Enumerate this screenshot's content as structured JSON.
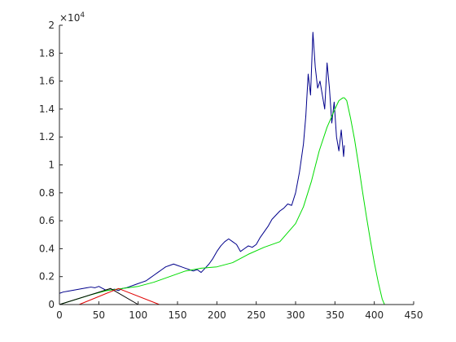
{
  "chart_data": {
    "type": "line",
    "title": "",
    "xlabel": "",
    "ylabel": "",
    "xlim": [
      0,
      450
    ],
    "ylim": [
      0,
      20000
    ],
    "y_multiplier_label": "×10",
    "y_multiplier_exponent": "4",
    "x_ticks": [
      0,
      50,
      100,
      150,
      200,
      250,
      300,
      350,
      400,
      450
    ],
    "x_tick_labels": [
      "0",
      "50",
      "100",
      "150",
      "200",
      "250",
      "300",
      "350",
      "400",
      "450"
    ],
    "y_ticks": [
      0,
      2000,
      4000,
      6000,
      8000,
      10000,
      12000,
      14000,
      16000,
      18000,
      20000
    ],
    "y_tick_labels": [
      "0",
      "0.2",
      "0.4",
      "0.6",
      "0.8",
      "1",
      "1.2",
      "1.4",
      "1.6",
      "1.8",
      "2"
    ],
    "grid": false,
    "legend": "none",
    "series": [
      {
        "color": "#00008b",
        "x": [
          0,
          5,
          10,
          15,
          20,
          25,
          30,
          35,
          40,
          45,
          50,
          55,
          60,
          65,
          70,
          75,
          80,
          85,
          90,
          95,
          100,
          105,
          110,
          115,
          120,
          125,
          130,
          135,
          140,
          145,
          150,
          155,
          160,
          165,
          170,
          175,
          180,
          185,
          190,
          195,
          200,
          205,
          210,
          215,
          220,
          225,
          230,
          235,
          240,
          245,
          250,
          255,
          260,
          265,
          270,
          275,
          280,
          285,
          290,
          295,
          300,
          305,
          310,
          313,
          316,
          319,
          322,
          325,
          328,
          331,
          334,
          337,
          340,
          343,
          346,
          349,
          352,
          355,
          358,
          361,
          362
        ],
        "y": [
          800,
          900,
          950,
          1000,
          1050,
          1100,
          1150,
          1200,
          1250,
          1200,
          1300,
          1150,
          1000,
          1050,
          1100,
          1000,
          1150,
          1200,
          1300,
          1400,
          1500,
          1600,
          1700,
          1900,
          2100,
          2300,
          2500,
          2700,
          2800,
          2900,
          2800,
          2700,
          2600,
          2500,
          2400,
          2500,
          2300,
          2600,
          2900,
          3300,
          3800,
          4200,
          4500,
          4700,
          4500,
          4300,
          3800,
          4000,
          4200,
          4100,
          4300,
          4800,
          5200,
          5600,
          6100,
          6400,
          6700,
          6900,
          7200,
          7100,
          8000,
          9500,
          11500,
          13500,
          16500,
          15000,
          19500,
          17000,
          15500,
          16000,
          15000,
          14000,
          17300,
          15500,
          13000,
          14500,
          12000,
          11000,
          12500,
          10600,
          11400
        ]
      },
      {
        "color": "#00dc00",
        "x": [
          0,
          20,
          40,
          60,
          80,
          100,
          120,
          140,
          160,
          180,
          200,
          220,
          240,
          260,
          280,
          300,
          310,
          320,
          330,
          340,
          350,
          355,
          360,
          362,
          365,
          370,
          375,
          380,
          385,
          390,
          395,
          400,
          405,
          410,
          413
        ],
        "y": [
          0,
          350,
          700,
          1000,
          1150,
          1300,
          1600,
          2000,
          2400,
          2600,
          2700,
          3000,
          3600,
          4100,
          4500,
          5800,
          7000,
          8800,
          11000,
          12700,
          14000,
          14600,
          14800,
          14800,
          14600,
          13300,
          11800,
          10000,
          8100,
          6300,
          4600,
          3000,
          1600,
          400,
          0
        ]
      },
      {
        "color": "#000000",
        "x": [
          0,
          65,
          100
        ],
        "y": [
          0,
          1150,
          0
        ]
      },
      {
        "color": "#e00000",
        "x": [
          0,
          25,
          75,
          127,
          450
        ],
        "y": [
          0,
          0,
          1150,
          0,
          0
        ]
      }
    ]
  }
}
